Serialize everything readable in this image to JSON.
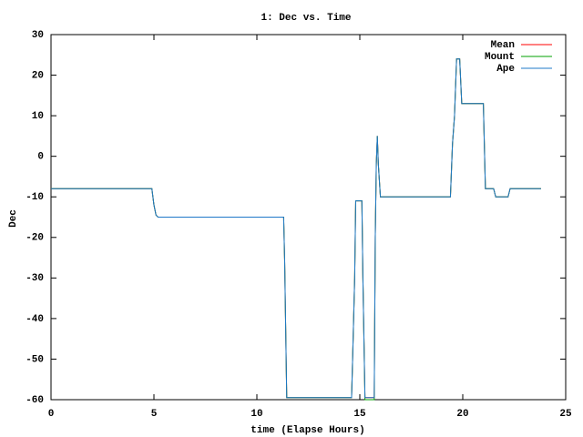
{
  "chart_data": {
    "type": "line",
    "title": "1: Dec vs. Time",
    "x_label": "time (Elapse Hours)",
    "y_label": "Dec",
    "x": [
      0,
      4.9,
      5.0,
      5.1,
      5.2,
      11.3,
      11.35,
      11.45,
      14.6,
      14.65,
      14.75,
      14.8,
      15.1,
      15.15,
      15.25,
      15.7,
      15.75,
      15.8,
      15.85,
      15.9,
      16.0,
      19.4,
      19.5,
      19.6,
      19.7,
      19.85,
      19.95,
      21.0,
      21.1,
      21.5,
      21.6,
      22.2,
      22.3,
      23.8
    ],
    "series": [
      {
        "name": "Mean",
        "color": "#ff0000",
        "values": [
          -8,
          -8,
          -12,
          -14.5,
          -15,
          -15,
          -26,
          -59.5,
          -59.5,
          -50,
          -30,
          -11,
          -11,
          -30,
          -59.5,
          -59.5,
          -20,
          -2,
          5,
          -2,
          -10,
          -10,
          3,
          10,
          24,
          24,
          13,
          13,
          -8,
          -8,
          -10,
          -10,
          -8,
          -8
        ]
      },
      {
        "name": "Mount",
        "color": "#00a000",
        "values": [
          -8,
          -8,
          -12,
          -14.5,
          -15,
          -15,
          -26,
          -59.5,
          -59.5,
          -50,
          -30,
          -11,
          -11,
          -30,
          -60,
          -60,
          -20,
          -2,
          5,
          -2,
          -10,
          -10,
          3,
          10,
          24,
          24,
          13,
          13,
          -8,
          -8,
          -10,
          -10,
          -8,
          -8
        ]
      },
      {
        "name": "Ape",
        "color": "#1f78c8",
        "values": [
          -8,
          -8,
          -12,
          -14.5,
          -15,
          -15,
          -26,
          -59.5,
          -59.5,
          -50,
          -30,
          -11,
          -11,
          -30,
          -59.5,
          -59.5,
          -20,
          -2,
          5,
          -2,
          -10,
          -10,
          3,
          10,
          24,
          24,
          13,
          13,
          -8,
          -8,
          -10,
          -10,
          -8,
          -8
        ]
      }
    ],
    "xlim": [
      0,
      25
    ],
    "xticks": [
      0,
      5,
      10,
      15,
      20,
      25
    ],
    "ylim": [
      -60,
      30
    ],
    "yticks": [
      -60,
      -50,
      -40,
      -30,
      -20,
      -10,
      0,
      10,
      20,
      30
    ],
    "grid": false,
    "legend": "top-right"
  }
}
